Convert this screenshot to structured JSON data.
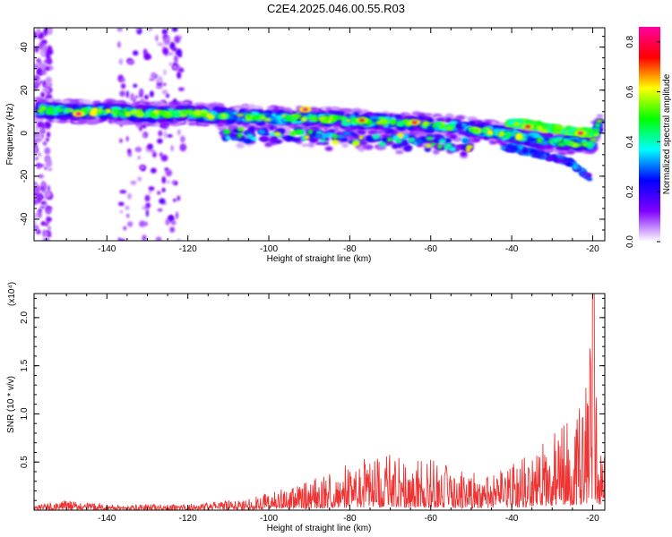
{
  "title": "C2E4.2025.046.00.55.R03",
  "chart_data": [
    {
      "type": "heatmap",
      "xlabel": "Height of straight line (km)",
      "ylabel": "Frequency (Hz)",
      "xlim": [
        -158,
        -17
      ],
      "ylim": [
        -50,
        49
      ],
      "x_ticks": [
        -140,
        -120,
        -100,
        -80,
        -60,
        -40,
        -20
      ],
      "y_ticks": [
        40,
        20,
        0,
        -20,
        -40
      ],
      "colorbar": {
        "label": "Normalized spectral amplitude",
        "range": [
          0,
          0.86
        ],
        "ticks": [
          0.0,
          0.2,
          0.4,
          0.6,
          0.8
        ],
        "tick_labels": [
          "0.0",
          "0.2",
          "0.4",
          "0.6",
          "0.8"
        ],
        "colormap": [
          "#ffffff",
          "#8000ff",
          "#0000ff",
          "#00ffff",
          "#00ff00",
          "#ffff00",
          "#ff0000",
          "#ff00a0"
        ]
      },
      "ridge": {
        "x": [
          -157,
          -150,
          -140,
          -130,
          -120,
          -110,
          -100,
          -90,
          -80,
          -70,
          -60,
          -50,
          -40,
          -30,
          -20,
          -18
        ],
        "frequency": [
          11,
          10,
          10,
          9,
          9,
          8,
          7,
          7,
          6,
          5,
          4,
          2,
          -1,
          -4,
          -5,
          8
        ]
      },
      "secondary_ridge": {
        "x": [
          -41,
          -35,
          -30,
          -25,
          -20
        ],
        "frequency": [
          5,
          4,
          2,
          1,
          0
        ]
      },
      "lower_branch": {
        "x": [
          -42,
          -35,
          -30,
          -25,
          -20
        ],
        "frequency": [
          -6,
          -9,
          -11,
          -14,
          -22
        ]
      },
      "peaks": [
        {
          "x": -147,
          "frequency": 9,
          "amplitude": 0.86
        },
        {
          "x": -91,
          "frequency": 11,
          "amplitude": 0.84
        },
        {
          "x": -77,
          "frequency": 6,
          "amplitude": 0.8
        },
        {
          "x": -64,
          "frequency": 5,
          "amplitude": 0.82
        },
        {
          "x": -36,
          "frequency": 3,
          "amplitude": 0.8
        },
        {
          "x": -23,
          "frequency": 0,
          "amplitude": 0.82
        }
      ],
      "noise_bands": [
        {
          "x_range": [
            -137,
            -121
          ],
          "amplitude": 0.12
        },
        {
          "x_range": [
            -158,
            -154
          ],
          "amplitude": 0.1
        }
      ]
    },
    {
      "type": "line",
      "xlabel": "Height of straight line (km)",
      "ylabel": "SNR (10 * v/v)",
      "y_multiplier": "(x10⁴)",
      "xlim": [
        -158,
        -17
      ],
      "ylim": [
        0,
        2.25
      ],
      "x_ticks": [
        -140,
        -120,
        -100,
        -80,
        -60,
        -40,
        -20
      ],
      "y_ticks": [
        0.5,
        1.0,
        1.5,
        2.0
      ],
      "y_tick_labels": [
        "0.5",
        "1.0",
        "1.5",
        "2.0"
      ],
      "color": "#ee3333",
      "envelope": {
        "x": [
          -158,
          -150,
          -140,
          -120,
          -110,
          -105,
          -100,
          -95,
          -90,
          -85,
          -80,
          -75,
          -70,
          -65,
          -60,
          -55,
          -50,
          -45,
          -40,
          -35,
          -30,
          -25,
          -22,
          -20,
          -18
        ],
        "y": [
          0.05,
          0.1,
          0.06,
          0.06,
          0.1,
          0.12,
          0.2,
          0.25,
          0.3,
          0.4,
          0.5,
          0.55,
          0.6,
          0.5,
          0.55,
          0.45,
          0.4,
          0.35,
          0.5,
          0.6,
          0.8,
          1.0,
          1.1,
          2.25,
          0.6
        ]
      }
    }
  ]
}
